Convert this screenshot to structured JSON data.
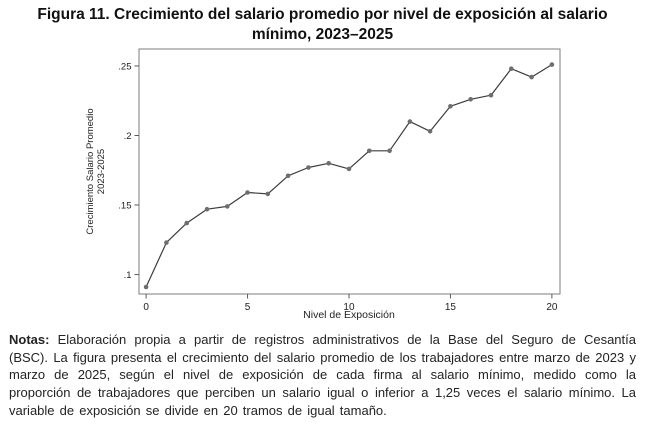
{
  "figure": {
    "title": "Figura 11. Crecimiento del salario promedio por nivel de exposición al salario mínimo, 2023–2025",
    "notes_label": "Notas:",
    "notes_text": " Elaboración propia a partir de registros administrativos de la Base del Seguro de Cesantía (BSC). La figura presenta el crecimiento del salario promedio de los trabajadores entre marzo de 2023 y marzo de 2025, según el nivel de exposición de cada firma al salario mínimo, medido como la proporción de trabajadores que perciben un salario igual o inferior a 1,25 veces el salario mínimo. La variable de exposición se divide en 20 tramos de igual tamaño."
  },
  "chart_data": {
    "type": "line",
    "title": "Figura 11. Crecimiento del salario promedio por nivel de exposición al salario mínimo, 2023–2025",
    "x": [
      0,
      1,
      2,
      3,
      4,
      5,
      6,
      7,
      8,
      9,
      10,
      11,
      12,
      13,
      14,
      15,
      16,
      17,
      18,
      19,
      20
    ],
    "values": [
      0.091,
      0.123,
      0.137,
      0.147,
      0.149,
      0.159,
      0.158,
      0.171,
      0.177,
      0.18,
      0.176,
      0.189,
      0.189,
      0.21,
      0.203,
      0.221,
      0.226,
      0.229,
      0.248,
      0.242,
      0.251
    ],
    "xlabel": "Nivel de Exposición",
    "ylabel_line1": "Crecimiento Salario Promedio",
    "ylabel_line2": "2023-2025",
    "xlim": [
      -0.35,
      20.4
    ],
    "ylim": [
      0.086,
      0.2622
    ],
    "xticks": [
      0,
      5,
      10,
      15,
      20
    ],
    "xtick_labels": [
      "0",
      "5",
      "10",
      "15",
      "20"
    ],
    "yticks": [
      0.1,
      0.15,
      0.2,
      0.25
    ],
    "ytick_labels": [
      ".1",
      ".15",
      ".2",
      ".25"
    ],
    "grid": false,
    "legend": false,
    "marker_color": "#6e6e6e",
    "line_color": "#3c3c3c",
    "box_color": "#7d7d7d",
    "tick_color": "#5a5a5a"
  }
}
